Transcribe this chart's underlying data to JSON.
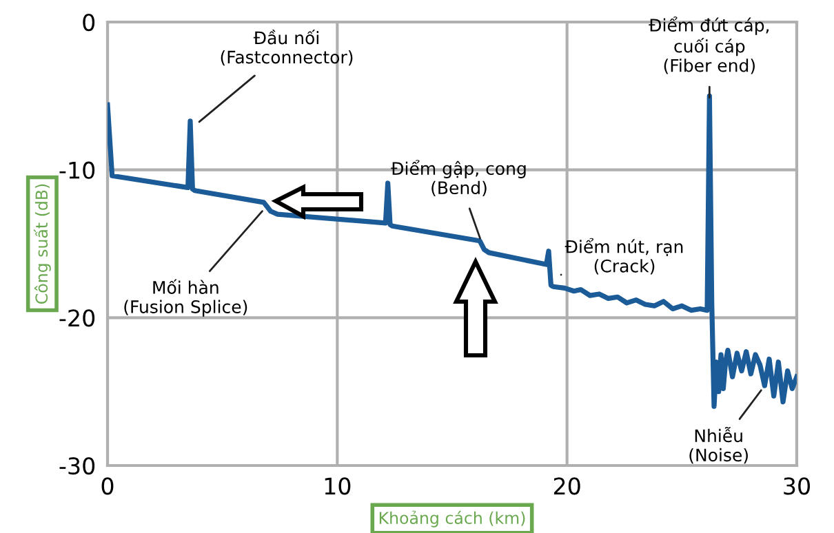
{
  "chart_data": {
    "type": "line",
    "xlabel": "Khoảng cách (km)",
    "ylabel": "Công suất (dB)",
    "xlim": [
      0,
      30
    ],
    "ylim": [
      -30,
      0
    ],
    "xticks": [
      0,
      10,
      20,
      30
    ],
    "yticks": [
      0,
      -10,
      -20,
      -30
    ],
    "grid": true,
    "line_style": "solid",
    "marker": "none",
    "series": [
      {
        "color": "#1b5b98",
        "x": [
          0,
          0.2,
          3.5,
          3.6,
          3.7,
          3.8,
          6.8,
          7.1,
          7.4,
          12.1,
          12.2,
          12.3,
          12.4,
          16.2,
          16.4,
          16.6,
          19.1,
          19.2,
          19.3,
          19.4,
          19.9,
          20.3,
          20.6,
          21.0,
          21.4,
          21.8,
          22.2,
          22.6,
          23.0,
          23.4,
          23.8,
          24.2,
          24.6,
          25.0,
          25.4,
          25.8,
          26.1,
          26.2,
          26.3,
          26.4,
          26.5,
          26.6,
          26.7,
          26.8,
          26.9,
          27.0,
          27.2,
          27.4,
          27.6,
          27.8,
          28.0,
          28.2,
          28.4,
          28.6,
          28.8,
          29.0,
          29.2,
          29.4,
          29.6,
          29.8,
          30.0
        ],
        "values": [
          -5.6,
          -10.4,
          -11.2,
          -6.7,
          -11.3,
          -11.4,
          -12.2,
          -12.8,
          -13.0,
          -13.6,
          -10.9,
          -13.7,
          -13.8,
          -14.8,
          -15.4,
          -15.6,
          -16.4,
          -15.5,
          -17.8,
          -17.9,
          -18.0,
          -18.2,
          -18.1,
          -18.5,
          -18.4,
          -18.7,
          -18.6,
          -19.0,
          -18.8,
          -19.1,
          -19.2,
          -18.9,
          -19.4,
          -19.2,
          -19.5,
          -19.4,
          -19.5,
          -5.0,
          -19.0,
          -26.0,
          -23.0,
          -25.0,
          -22.5,
          -24.8,
          -23.0,
          -22.2,
          -24.0,
          -22.4,
          -23.6,
          -22.3,
          -23.8,
          -22.5,
          -23.2,
          -24.6,
          -22.8,
          -25.3,
          -23.0,
          -25.7,
          -23.6,
          -24.8,
          -24.0
        ]
      }
    ],
    "annotations": [
      {
        "text": "Đầu nối\n(Fastconnector)",
        "x": 3.8,
        "y": -7.0
      },
      {
        "text": "Mối hàn\n(Fusion Splice)",
        "x": 6.9,
        "y": -12.5
      },
      {
        "text": "Điểm gập, cong\n(Bend)",
        "x": 16.3,
        "y": -15.0
      },
      {
        "text": "Điểm nút, rạn\n(Crack)",
        "x": 19.5,
        "y": -17.2
      },
      {
        "text": "Điểm đứt cáp,\ncuối cáp\n(Fiber end)",
        "x": 26.2,
        "y": -5.5
      },
      {
        "text": "Nhiễu\n(Noise)",
        "x": 28.6,
        "y": -24.6
      }
    ]
  }
}
